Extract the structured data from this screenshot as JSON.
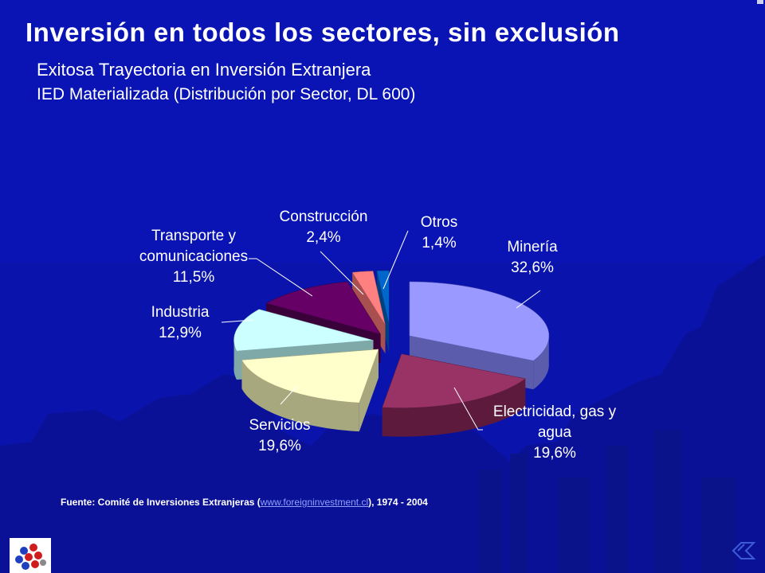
{
  "header": {
    "title": "Inversión en todos los sectores, sin exclusión",
    "subtitle": "Exitosa Trayectoria en Inversión Extranjera",
    "subtitle2": "IED Materializada (Distribución por Sector, DL 600)"
  },
  "chart_data": {
    "type": "pie",
    "style": "3d-exploded",
    "slices": [
      {
        "label": "Minería",
        "value": 32.6,
        "value_label": "32,6%",
        "color": "#9999ff",
        "side": "#5c5cad"
      },
      {
        "label": "Electricidad, gas y agua",
        "value": 19.6,
        "value_label": "19,6%",
        "color": "#993366",
        "side": "#5e1a3c"
      },
      {
        "label": "Servicios",
        "value": 19.6,
        "value_label": "19,6%",
        "color": "#ffffcc",
        "side": "#a8a87e"
      },
      {
        "label": "Industria",
        "value": 12.9,
        "value_label": "12,9%",
        "color": "#ccffff",
        "side": "#7fa9a9"
      },
      {
        "label": "Transporte y comunicaciones",
        "value": 11.5,
        "value_label": "11,5%",
        "color": "#660066",
        "side": "#3a003a"
      },
      {
        "label": "Construcción",
        "value": 2.4,
        "value_label": "2,4%",
        "color": "#ff8080",
        "side": "#a84f4f"
      },
      {
        "label": "Otros",
        "value": 1.4,
        "value_label": "1,4%",
        "color": "#0066cc",
        "side": "#003f80"
      }
    ],
    "label_lines": [
      [
        "Minería",
        "32,6%"
      ],
      [
        "Electricidad, gas y",
        "agua",
        "19,6%"
      ],
      [
        "Servicios",
        "19,6%"
      ],
      [
        "Industria",
        "12,9%"
      ],
      [
        "Transporte y",
        "comunicaciones",
        "11,5%"
      ],
      [
        "Construcción",
        "2,4%"
      ],
      [
        "Otros",
        "1,4%"
      ]
    ]
  },
  "footer": {
    "source_prefix": "Fuente: Comité de Inversiones Extranjeras (",
    "source_link": "www.foreigninvestment.cl",
    "source_suffix": "), 1974 - 2004"
  }
}
